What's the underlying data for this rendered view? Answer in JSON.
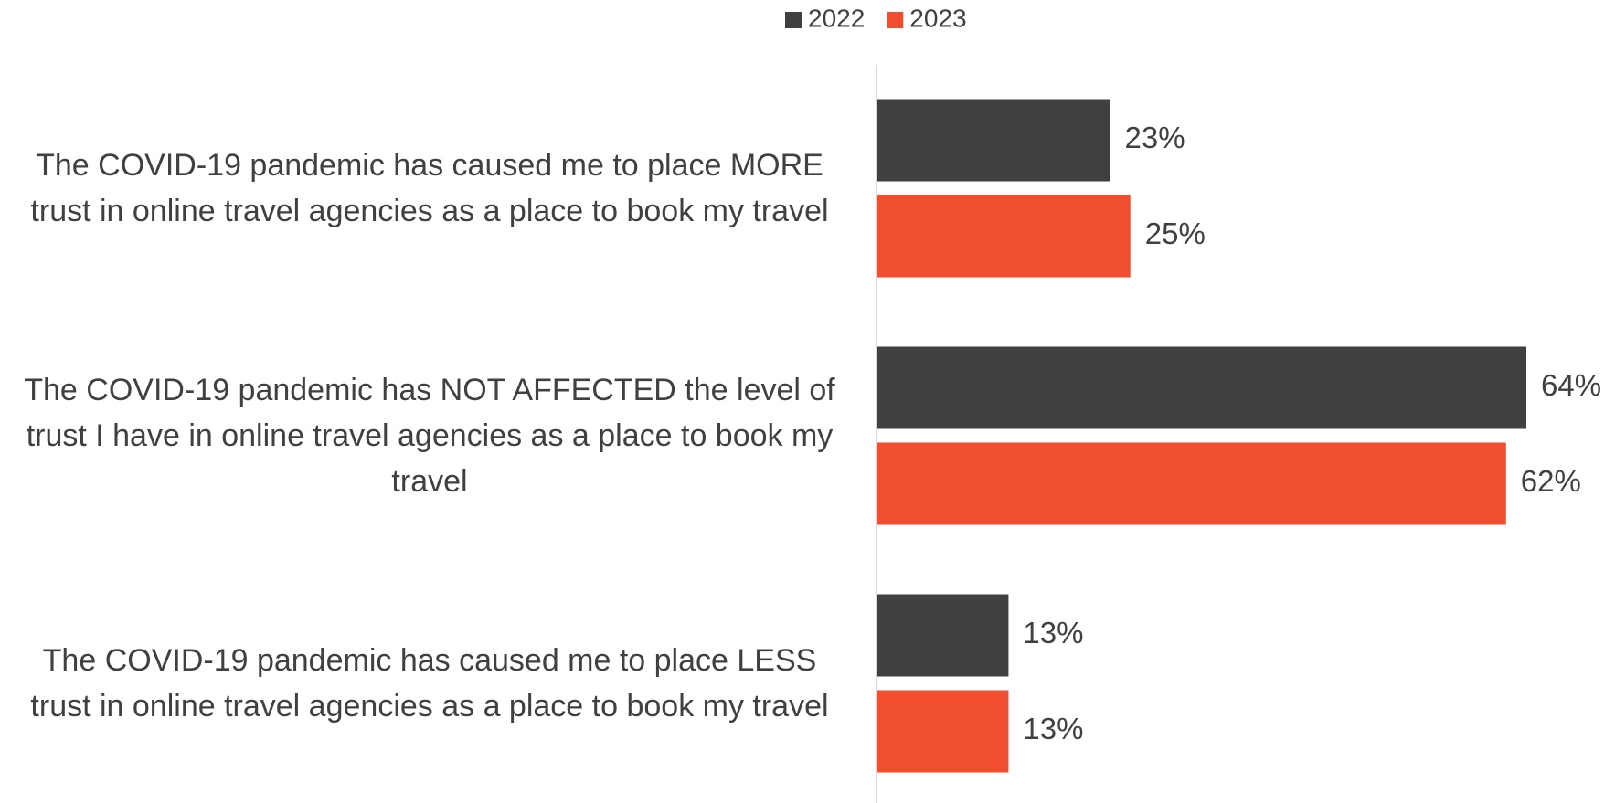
{
  "chart_data": {
    "type": "barh",
    "categories": [
      "The COVID-19 pandemic has caused me to place MORE trust in online travel agencies as a place to book my travel",
      "The COVID-19 pandemic has NOT AFFECTED the level of trust I have in online travel agencies as a place to book my travel",
      "The COVID-19 pandemic has caused me to place LESS trust in online travel agencies as a place to book my travel"
    ],
    "series": [
      {
        "name": "2022",
        "color": "#404040",
        "values": [
          23,
          64,
          13
        ],
        "value_labels": [
          "23%",
          "64%",
          "13%"
        ]
      },
      {
        "name": "2023",
        "color": "#f04e2e",
        "values": [
          25,
          62,
          13
        ],
        "value_labels": [
          "25%",
          "62%",
          "13%"
        ]
      }
    ],
    "legend": "top"
  }
}
